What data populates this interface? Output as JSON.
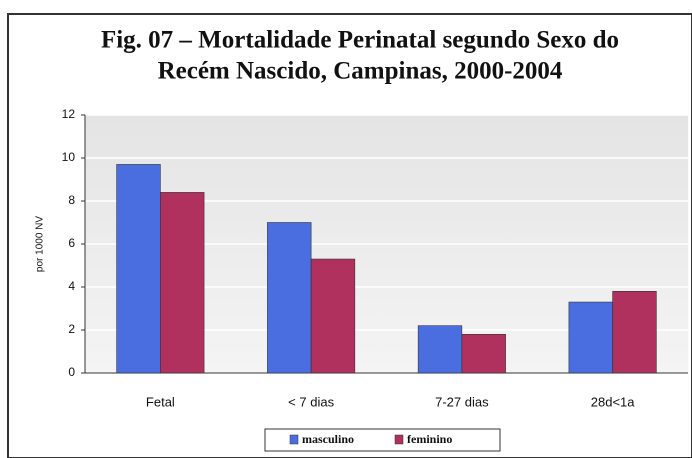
{
  "chart_data": {
    "type": "bar",
    "title": [
      "Fig. 07 – Mortalidade Perinatal segundo Sexo do",
      "Recém Nascido, Campinas, 2000-2004"
    ],
    "y_label": "por 1000 NV",
    "categories": [
      "Fetal",
      "< 7 dias",
      "7-27 dias",
      "28d<1a"
    ],
    "series": [
      {
        "name": "masculino",
        "color": "#4a6ee0",
        "values": [
          9.7,
          7.0,
          2.2,
          3.3
        ]
      },
      {
        "name": "feminino",
        "color": "#b0305e",
        "values": [
          8.4,
          5.3,
          1.8,
          3.8
        ]
      }
    ],
    "ylim": [
      0,
      12
    ],
    "yticks": [
      0,
      2,
      4,
      6,
      8,
      10,
      12
    ],
    "grid": true
  }
}
